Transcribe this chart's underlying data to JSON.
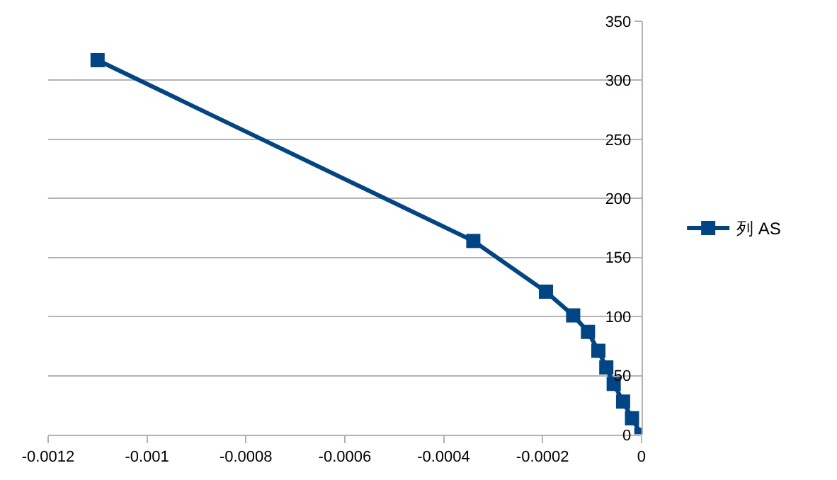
{
  "chart_data": {
    "type": "line",
    "x": [
      -0.0011,
      -0.00034,
      -0.000193,
      -0.000138,
      -0.000108,
      -8.7e-05,
      -7.1e-05,
      -5.6e-05,
      -3.7e-05,
      -1.9e-05,
      0
    ],
    "series": [
      {
        "name": "列 AS",
        "color": "#004586",
        "values": [
          317,
          164,
          121,
          101,
          87,
          71,
          57,
          43,
          28,
          14,
          0
        ]
      }
    ],
    "xlim": [
      -0.0012,
      0
    ],
    "xticks": [
      -0.0012,
      -0.001,
      -0.0008,
      -0.0006,
      -0.0004,
      -0.0002,
      0
    ],
    "ylim": [
      0,
      350
    ],
    "yticks": [
      0,
      50,
      100,
      150,
      200,
      250,
      300,
      350
    ],
    "grid": "y",
    "legend": "right",
    "marker": "square",
    "line_style": "solid"
  }
}
